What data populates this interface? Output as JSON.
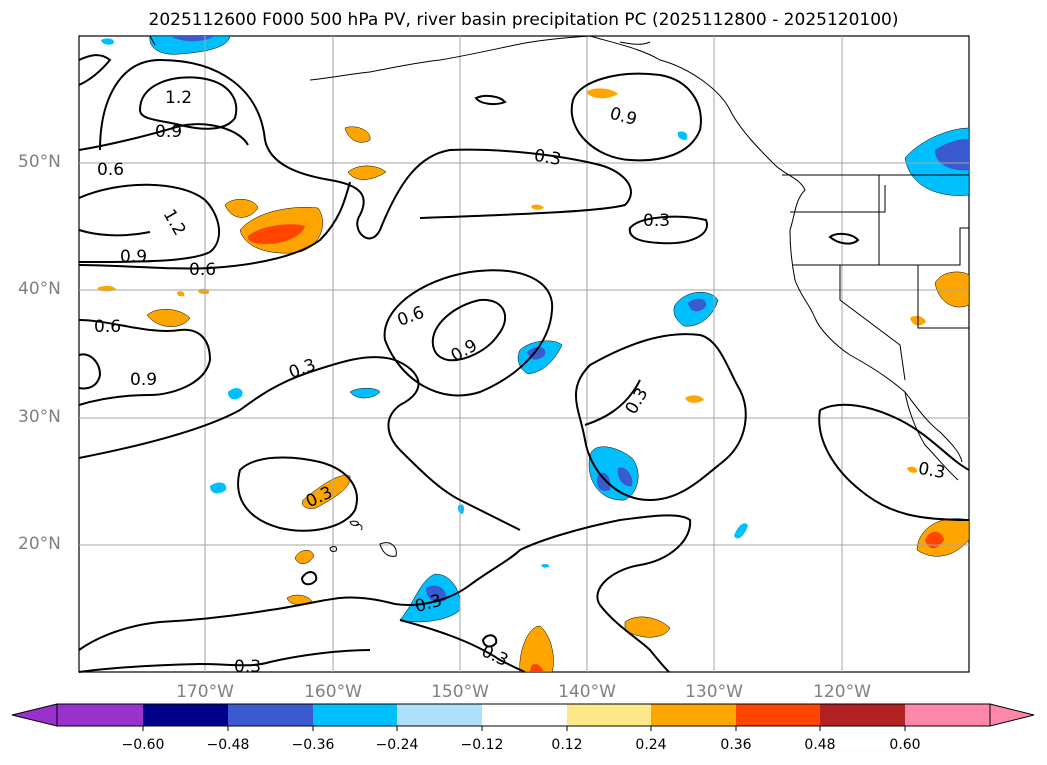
{
  "title": "2025112600 F000 500 hPa PV, river basin precipitation PC (2025112800 - 2025120100)",
  "lat_labels": [
    "50°N",
    "40°N",
    "30°N",
    "20°N"
  ],
  "lon_labels": [
    "170°W",
    "160°W",
    "150°W",
    "140°W",
    "130°W",
    "120°W"
  ],
  "contour_labels": [
    "1.2",
    "0.9",
    "0.6",
    "1.2",
    "0.9",
    "0.6",
    "0.6",
    "0.9",
    "0.3",
    "0.3",
    "0.6",
    "0.9",
    "0.3",
    "0.9",
    "0.3",
    "0.3",
    "0.3",
    "0.3",
    "0.3",
    "0.3"
  ],
  "colorbar": {
    "ticks": [
      "−0.60",
      "−0.48",
      "−0.36",
      "−0.24",
      "−0.12",
      "0.12",
      "0.24",
      "0.36",
      "0.48",
      "0.60"
    ],
    "colors": [
      "#9932cc",
      "#00008b",
      "#3a5bd0",
      "#00bfff",
      "#aee0fa",
      "#ffffff",
      "#fde88a",
      "#ffa500",
      "#ff4500",
      "#b22222",
      "#ff88aa"
    ]
  }
}
